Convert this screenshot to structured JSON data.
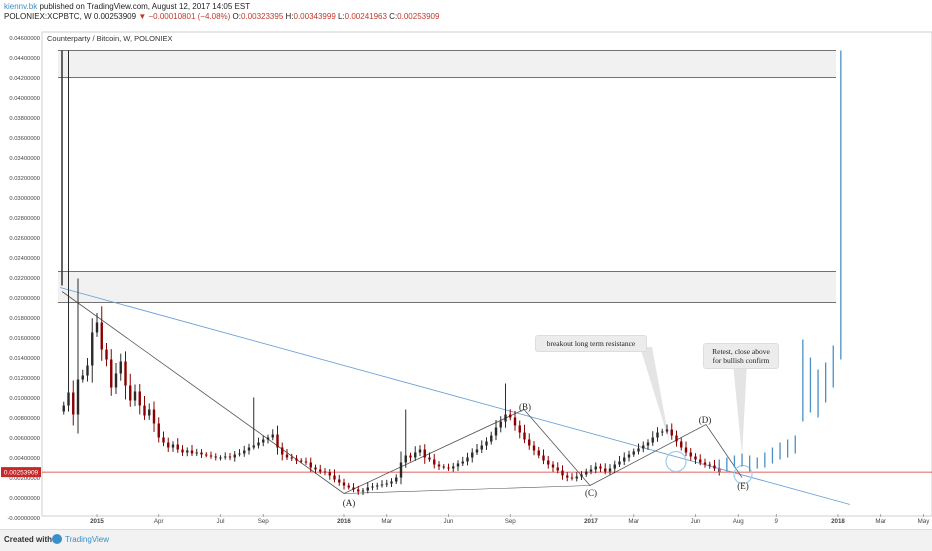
{
  "header": {
    "author": "kiennv.bk",
    "published": "published on TradingView.com, August 12, 2017 14:05 EST",
    "symbol": "POLONIEX:XCPBTC, W",
    "last": "0.00253909",
    "arrow": "▼",
    "change": "−0.00010801 (−4.08%)",
    "o_label": "O:",
    "o": "0.00323395",
    "h_label": "H:",
    "h": "0.00343999",
    "l_label": "L:",
    "l": "0.00241963",
    "c_label": "C:",
    "c": "0.00253909"
  },
  "footer": {
    "created": "Created with",
    "brand": "TradingView"
  },
  "colors": {
    "up": "#2a2a2a",
    "down": "#8b0000",
    "projection": "#4a8fc7",
    "trend": "#6a9fd8",
    "price_line": "#d32f2f"
  },
  "chart_data": {
    "type": "candlestick",
    "title": "Counterparty / Bitcoin, W, POLONIEX",
    "current_price_label": "0.00253909",
    "ylim": [
      -0.001,
      0.048
    ],
    "y_ticks": [
      "0.04600000",
      "0.04400000",
      "0.04200000",
      "0.04000000",
      "0.03800000",
      "0.03600000",
      "0.03400000",
      "0.03200000",
      "0.03000000",
      "0.02800000",
      "0.02600000",
      "0.02400000",
      "0.02200000",
      "0.02000000",
      "0.01800000",
      "0.01600000",
      "0.01400000",
      "0.01200000",
      "0.01000000",
      "0.00800000",
      "0.00600000",
      "0.00400000",
      "0.00200000",
      "0.00000000"
    ],
    "x_ticks": [
      {
        "label": "2015",
        "week": 0,
        "bold": true
      },
      {
        "label": "Apr",
        "week": 13
      },
      {
        "label": "Jul",
        "week": 26
      },
      {
        "label": "Sep",
        "week": 35
      },
      {
        "label": "2016",
        "week": 52,
        "bold": true
      },
      {
        "label": "Mar",
        "week": 61
      },
      {
        "label": "Jun",
        "week": 74
      },
      {
        "label": "Sep",
        "week": 87
      },
      {
        "label": "2017",
        "week": 104,
        "bold": true
      },
      {
        "label": "Mar",
        "week": 113
      },
      {
        "label": "Jun",
        "week": 126
      },
      {
        "label": "Aug",
        "week": 135
      },
      {
        "label": "9",
        "week": 143
      },
      {
        "label": "2018",
        "week": 156,
        "bold": true
      },
      {
        "label": "Mar",
        "week": 165
      },
      {
        "label": "May",
        "week": 174
      }
    ],
    "resistance_zones": [
      [
        0.042,
        0.0447
      ],
      [
        0.0195,
        0.0226
      ]
    ],
    "wave_labels": [
      {
        "label": "(A)",
        "week": 53,
        "price": 0.0005
      },
      {
        "label": "(B)",
        "week": 92,
        "price": 0.0093
      },
      {
        "label": "(C)",
        "week": 105,
        "price": 0.0011
      },
      {
        "label": "(D)",
        "week": 126,
        "price": 0.0078
      },
      {
        "label": "(E)",
        "week": 137,
        "price": 0.0015
      }
    ],
    "annotations": [
      {
        "text": "breakout long term resistance"
      },
      {
        "text": "Retest, close above for bullish confirm"
      }
    ]
  }
}
